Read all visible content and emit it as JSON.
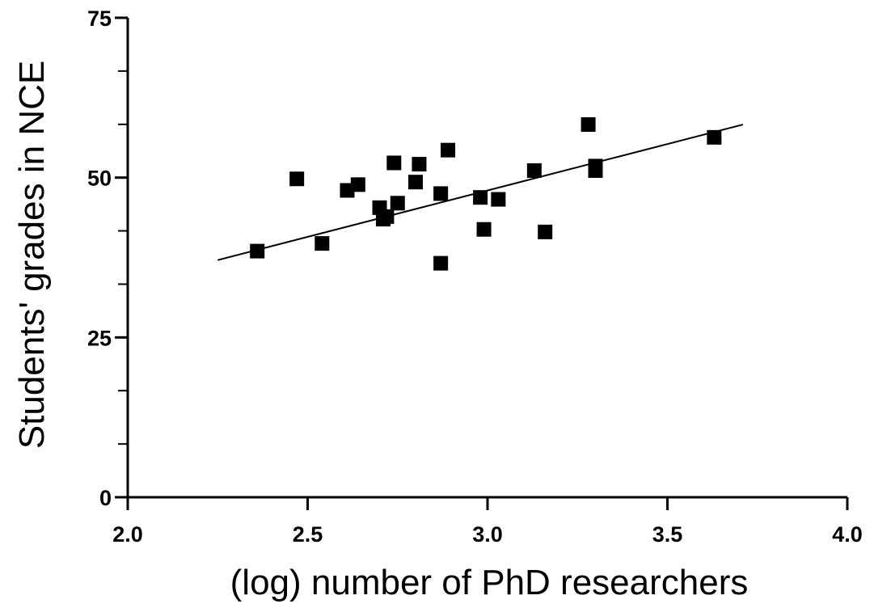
{
  "chart_data": {
    "type": "scatter",
    "title": "",
    "xlabel": "(log) number of PhD researchers",
    "ylabel": "Students' grades in NCE",
    "xlim": [
      2.0,
      4.0
    ],
    "ylim": [
      0,
      75
    ],
    "x_ticks": [
      "2.0",
      "2.5",
      "3.0",
      "3.5",
      "4.0"
    ],
    "y_ticks": [
      "0",
      "25",
      "50",
      "75"
    ],
    "y_minor_ticks": [
      8.33,
      16.67,
      33.33,
      41.67,
      58.33,
      66.67
    ],
    "grid": false,
    "legend": "none",
    "marker": "square",
    "color": "#000000",
    "points": [
      {
        "x": 2.36,
        "y": 38.5
      },
      {
        "x": 2.47,
        "y": 49.8
      },
      {
        "x": 2.54,
        "y": 39.7
      },
      {
        "x": 2.61,
        "y": 48.0
      },
      {
        "x": 2.64,
        "y": 48.9
      },
      {
        "x": 2.7,
        "y": 45.3
      },
      {
        "x": 2.71,
        "y": 43.5
      },
      {
        "x": 2.72,
        "y": 43.9
      },
      {
        "x": 2.74,
        "y": 52.3
      },
      {
        "x": 2.75,
        "y": 46.0
      },
      {
        "x": 2.8,
        "y": 49.3
      },
      {
        "x": 2.81,
        "y": 52.1
      },
      {
        "x": 2.87,
        "y": 47.5
      },
      {
        "x": 2.87,
        "y": 36.6
      },
      {
        "x": 2.89,
        "y": 54.3
      },
      {
        "x": 2.98,
        "y": 46.9
      },
      {
        "x": 2.99,
        "y": 41.9
      },
      {
        "x": 3.03,
        "y": 46.6
      },
      {
        "x": 3.13,
        "y": 51.1
      },
      {
        "x": 3.16,
        "y": 41.5
      },
      {
        "x": 3.28,
        "y": 58.3
      },
      {
        "x": 3.3,
        "y": 51.1
      },
      {
        "x": 3.3,
        "y": 51.8
      },
      {
        "x": 3.63,
        "y": 56.3
      }
    ],
    "fit_line": {
      "x": [
        2.25,
        3.71
      ],
      "y": [
        37.1,
        58.3
      ]
    }
  }
}
